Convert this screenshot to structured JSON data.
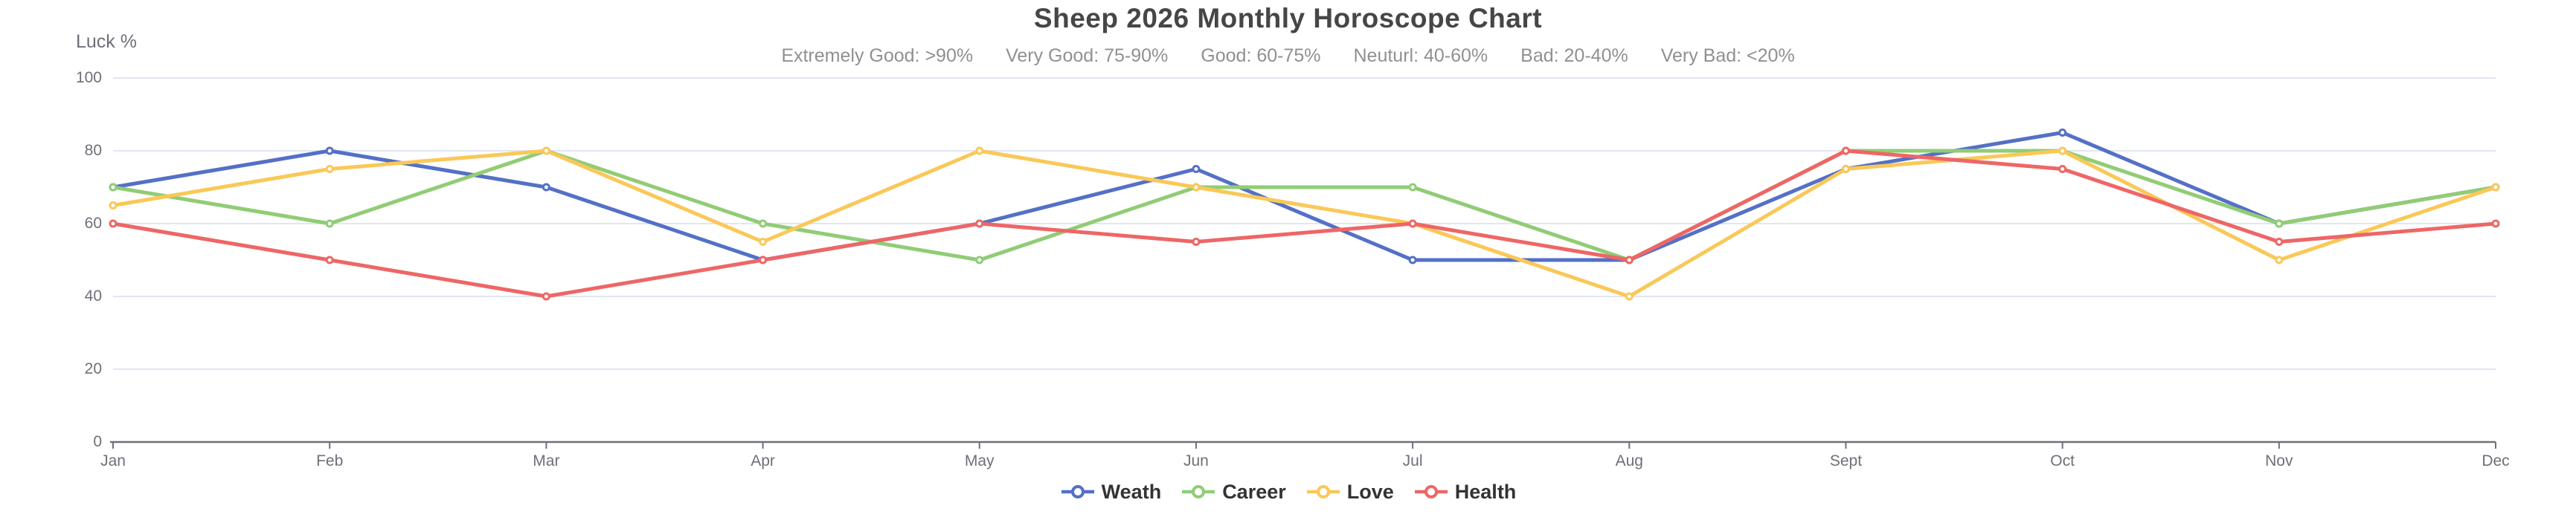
{
  "title": "Sheep 2026 Monthly Horoscope Chart",
  "subtitle": {
    "items": [
      "Extremely Good: >90%",
      "Very Good: 75-90%",
      "Good: 60-75%",
      "Neuturl: 40-60%",
      "Bad: 20-40%",
      "Very Bad: <20%"
    ]
  },
  "y_axis_name": "Luck %",
  "chart_data": {
    "type": "line",
    "title": "Sheep 2026 Monthly Horoscope Chart",
    "subtitle": "Extremely Good: >90%   Very Good: 75-90%   Good: 60-75%   Neuturl: 40-60%   Bad: 20-40%   Very Bad: <20%",
    "categories": [
      "Jan",
      "Feb",
      "Mar",
      "Apr",
      "May",
      "Jun",
      "Jul",
      "Aug",
      "Sept",
      "Oct",
      "Nov",
      "Dec"
    ],
    "series": [
      {
        "name": "Weath",
        "color": "#5470C6",
        "values": [
          70,
          80,
          70,
          50,
          60,
          75,
          50,
          50,
          75,
          85,
          60,
          70
        ]
      },
      {
        "name": "Career",
        "color": "#91CC75",
        "values": [
          70,
          60,
          80,
          60,
          50,
          70,
          70,
          50,
          80,
          80,
          60,
          70
        ]
      },
      {
        "name": "Love",
        "color": "#FAC858",
        "values": [
          65,
          75,
          80,
          55,
          80,
          70,
          60,
          40,
          75,
          80,
          50,
          70
        ]
      },
      {
        "name": "Health",
        "color": "#EE6666",
        "values": [
          60,
          50,
          40,
          50,
          60,
          55,
          60,
          50,
          80,
          75,
          55,
          60
        ]
      }
    ],
    "xlabel": "",
    "ylabel": "Luck %",
    "ylim": [
      0,
      100
    ],
    "y_ticks": [
      0,
      20,
      40,
      60,
      80,
      100
    ],
    "grid": true,
    "legend_position": "bottom",
    "marker": "hollow-circle"
  },
  "colors": {
    "background": "#ffffff",
    "title": "#464646",
    "subtitle": "#909090",
    "axis_label": "#6E7079",
    "axis_line": "#6E7079",
    "gridline": "#E0E6F1",
    "legend_text": "#333333"
  }
}
